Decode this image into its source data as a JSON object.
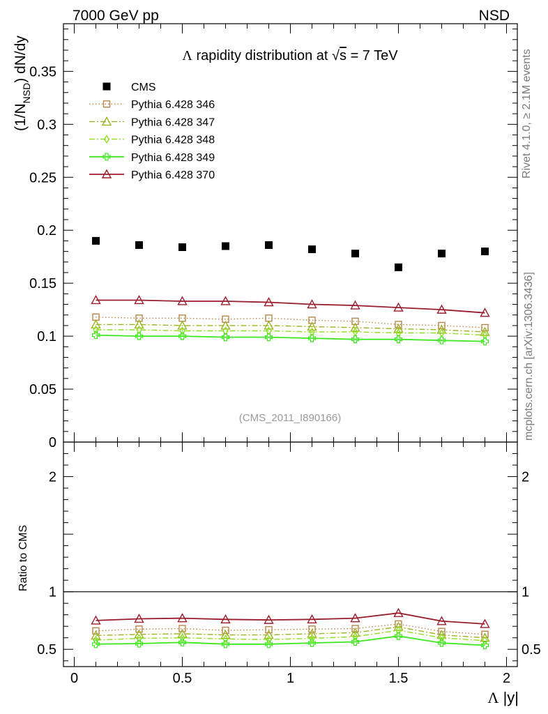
{
  "header": {
    "left": "7000 GeV pp",
    "right": "NSD"
  },
  "side_labels": {
    "rivet": "Rivet 4.1.0, ≥ 2.1M events",
    "mcplots": "mcplots.cern.ch [arXiv:1306.3436]"
  },
  "chart_data": [
    {
      "type": "scatter",
      "title_parts": {
        "lambda": "Λ",
        "pre": " rapidity distribution at ",
        "sqrt": "√",
        "s": "s",
        "post": " = 7 TeV"
      },
      "ylabel_parts": {
        "open": "(1/N",
        "sub": "NSD",
        "close": ") dN/dy"
      },
      "analysis_tag": "(CMS_2011_I890166)",
      "xlim": [
        -0.05,
        2.05
      ],
      "ylim": [
        0,
        0.395
      ],
      "ytick_values": [
        0,
        0.05,
        0.1,
        0.15,
        0.2,
        0.25,
        0.3,
        0.35
      ],
      "ytick_labels": [
        "0",
        "0.05",
        "0.1",
        "0.15",
        "0.2",
        "0.25",
        "0.3",
        "0.35"
      ],
      "x": [
        0.1,
        0.3,
        0.5,
        0.7,
        0.9,
        1.1,
        1.3,
        1.5,
        1.7,
        1.9
      ],
      "series": [
        {
          "name": "CMS",
          "marker": "square-filled",
          "line": "none",
          "color": "#000000",
          "values": [
            0.19,
            0.186,
            0.184,
            0.185,
            0.186,
            0.182,
            0.178,
            0.165,
            0.178,
            0.18
          ]
        },
        {
          "name": "Pythia 6.428 346",
          "marker": "square-open",
          "line": "dotted",
          "color": "#b8864b",
          "values": [
            0.118,
            0.117,
            0.117,
            0.116,
            0.117,
            0.115,
            0.114,
            0.111,
            0.11,
            0.108
          ]
        },
        {
          "name": "Pythia 6.428 347",
          "marker": "triangle-open",
          "line": "dashdot",
          "color": "#9db221",
          "values": [
            0.111,
            0.111,
            0.11,
            0.11,
            0.11,
            0.109,
            0.108,
            0.107,
            0.106,
            0.104
          ]
        },
        {
          "name": "Pythia 6.428 348",
          "marker": "diamond-open",
          "line": "dashdot",
          "color": "#8ee022",
          "values": [
            0.106,
            0.106,
            0.105,
            0.105,
            0.105,
            0.104,
            0.104,
            0.103,
            0.103,
            0.101
          ]
        },
        {
          "name": "Pythia 6.428 349",
          "marker": "cross-open",
          "line": "solid",
          "color": "#3ee81f",
          "values": [
            0.101,
            0.1,
            0.1,
            0.099,
            0.099,
            0.098,
            0.097,
            0.097,
            0.096,
            0.095
          ]
        },
        {
          "name": "Pythia 6.428 370",
          "marker": "triangle-open",
          "line": "solid",
          "color": "#9b1d2c",
          "values": [
            0.134,
            0.134,
            0.133,
            0.133,
            0.132,
            0.13,
            0.129,
            0.127,
            0.125,
            0.122
          ]
        }
      ]
    },
    {
      "type": "line",
      "ylabel": "Ratio to CMS",
      "xlabel_parts": {
        "lambda": "Λ",
        "var": " |y|"
      },
      "xlim": [
        -0.05,
        2.05
      ],
      "ylim": [
        0.35,
        2.3
      ],
      "xtick_values": [
        0,
        0.5,
        1,
        1.5,
        2
      ],
      "xtick_labels": [
        "0",
        "0.5",
        "1",
        "1.5",
        "2"
      ],
      "ytick_values": [
        0.5,
        1,
        2
      ],
      "ytick_labels": [
        "0.5",
        "1",
        "2"
      ],
      "reference_line": 1,
      "x": [
        0.1,
        0.3,
        0.5,
        0.7,
        0.9,
        1.1,
        1.3,
        1.5,
        1.7,
        1.9
      ],
      "series": [
        {
          "name": "Pythia 6.428 346",
          "marker": "square-open",
          "line": "dotted",
          "color": "#b8864b",
          "values": [
            0.66,
            0.675,
            0.68,
            0.665,
            0.67,
            0.675,
            0.68,
            0.72,
            0.655,
            0.63
          ]
        },
        {
          "name": "Pythia 6.428 347",
          "marker": "triangle-open",
          "line": "dashdot",
          "color": "#9db221",
          "values": [
            0.62,
            0.63,
            0.635,
            0.625,
            0.625,
            0.635,
            0.645,
            0.695,
            0.625,
            0.6
          ]
        },
        {
          "name": "Pythia 6.428 348",
          "marker": "diamond-open",
          "line": "dashdot",
          "color": "#8ee022",
          "values": [
            0.58,
            0.595,
            0.6,
            0.59,
            0.585,
            0.595,
            0.61,
            0.665,
            0.6,
            0.575
          ]
        },
        {
          "name": "Pythia 6.428 349",
          "marker": "cross-open",
          "line": "solid",
          "color": "#3ee81f",
          "values": [
            0.545,
            0.55,
            0.56,
            0.545,
            0.545,
            0.555,
            0.565,
            0.615,
            0.555,
            0.535
          ]
        },
        {
          "name": "Pythia 6.428 370",
          "marker": "triangle-open",
          "line": "solid",
          "color": "#9b1d2c",
          "values": [
            0.75,
            0.765,
            0.77,
            0.76,
            0.755,
            0.76,
            0.77,
            0.815,
            0.745,
            0.72
          ]
        }
      ]
    }
  ]
}
